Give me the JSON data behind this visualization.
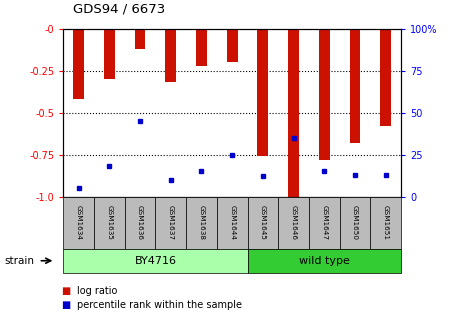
{
  "title": "GDS94 / 6673",
  "samples": [
    "GSM1634",
    "GSM1635",
    "GSM1636",
    "GSM1637",
    "GSM1638",
    "GSM1644",
    "GSM1645",
    "GSM1646",
    "GSM1647",
    "GSM1650",
    "GSM1651"
  ],
  "log_ratio": [
    -0.42,
    -0.3,
    -0.12,
    -0.32,
    -0.22,
    -0.2,
    -0.76,
    -1.0,
    -0.78,
    -0.68,
    -0.58
  ],
  "percentile_rank": [
    5,
    18,
    45,
    10,
    15,
    25,
    12,
    35,
    15,
    13,
    13
  ],
  "bar_color": "#cc1100",
  "dot_color": "#0000cc",
  "ylim_left": [
    -1.0,
    0.0
  ],
  "ylim_right": [
    0,
    100
  ],
  "y_ticks_left": [
    0,
    -0.25,
    -0.5,
    -0.75,
    -1.0
  ],
  "y_ticks_right": [
    0,
    25,
    50,
    75,
    100
  ],
  "groups": [
    {
      "label": "BY4716",
      "start": 0,
      "end": 6,
      "color": "#aaffaa"
    },
    {
      "label": "wild type",
      "start": 6,
      "end": 11,
      "color": "#33cc33"
    }
  ],
  "strain_label": "strain",
  "legend_items": [
    {
      "label": "log ratio",
      "color": "#cc1100"
    },
    {
      "label": "percentile rank within the sample",
      "color": "#0000cc"
    }
  ],
  "background_color": "#ffffff",
  "tick_label_bg": "#bbbbbb",
  "bar_width": 0.35
}
